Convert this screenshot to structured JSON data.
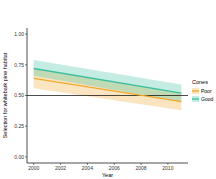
{
  "chart_data": {
    "type": "line",
    "x_label": "Year",
    "y_label": "Selection for whitebark pine habitat",
    "legend_title": "Cones",
    "x": [
      2000,
      2011
    ],
    "series": [
      {
        "name": "Poor",
        "color": "#f0a830",
        "values": [
          0.64,
          0.45
        ],
        "lower": [
          0.56,
          0.38
        ],
        "upper": [
          0.72,
          0.52
        ]
      },
      {
        "name": "Good",
        "color": "#3cbf9e",
        "values": [
          0.72,
          0.52
        ],
        "lower": [
          0.66,
          0.45
        ],
        "upper": [
          0.79,
          0.59
        ]
      }
    ],
    "hline": 0.5,
    "xlim": [
      1999.5,
      2011.5
    ],
    "xticks": [
      2000,
      2002,
      2004,
      2006,
      2008,
      2010
    ],
    "ylim": [
      -0.05,
      1.05
    ],
    "yticks": [
      {
        "value": 0,
        "label": "0.00"
      },
      {
        "value": 0.25,
        "label": "0.25"
      },
      {
        "value": 0.5,
        "label": "0.50"
      },
      {
        "value": 0.75,
        "label": "0.75"
      },
      {
        "value": 1,
        "label": "1.00"
      }
    ],
    "grid": false,
    "legend": "right"
  }
}
